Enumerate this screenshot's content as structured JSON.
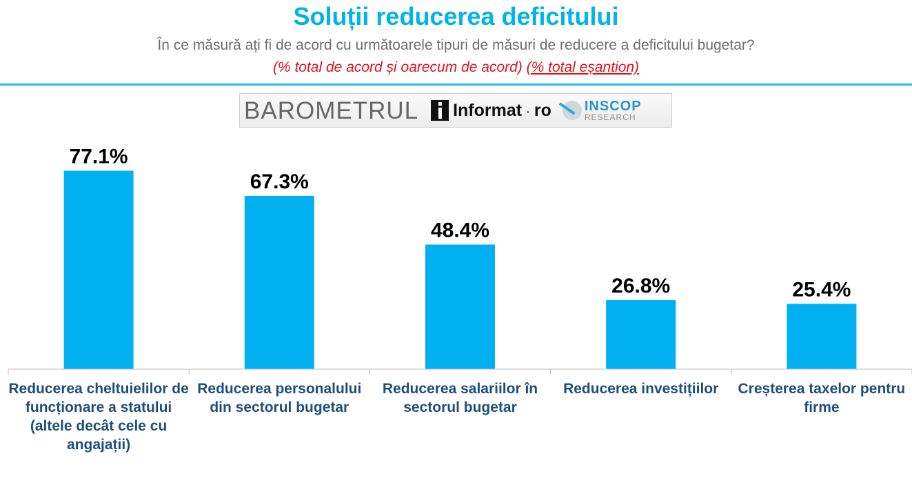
{
  "header": {
    "title": "Soluții reducerea deficitului",
    "subtitle": "În ce măsură ați fi de acord cu următoarele tipuri de măsuri de reducere a deficitului bugetar?",
    "note_main": "(% total de acord și oarecum de acord)",
    "note_base": "(% total eșantion)"
  },
  "logo": {
    "barometrul": "BAROMETRUL",
    "informat": "Informat",
    "informat_suffix": "ro",
    "inscop": "INSCOP",
    "research": "RESEARCH"
  },
  "colors": {
    "bar": "#00b0f0",
    "title": "#00b4e9",
    "category": "#1f4e79",
    "note": "#e3101b",
    "subtitle": "#6e6e6e"
  },
  "chart_data": {
    "type": "bar",
    "categories": [
      "Reducerea cheltuielilor de funcționare a statului (altele decât cele cu angajații)",
      "Reducerea personalului din sectorul bugetar",
      "Reducerea salariilor în sectorul bugetar",
      "Reducerea investițiilor",
      "Creșterea taxelor pentru firme"
    ],
    "values": [
      77.1,
      67.3,
      48.4,
      26.8,
      25.4
    ],
    "value_labels": [
      "77.1%",
      "67.3%",
      "48.4%",
      "26.8%",
      "25.4%"
    ],
    "ylim": [
      0,
      100
    ],
    "grid": false,
    "legend": "none"
  }
}
